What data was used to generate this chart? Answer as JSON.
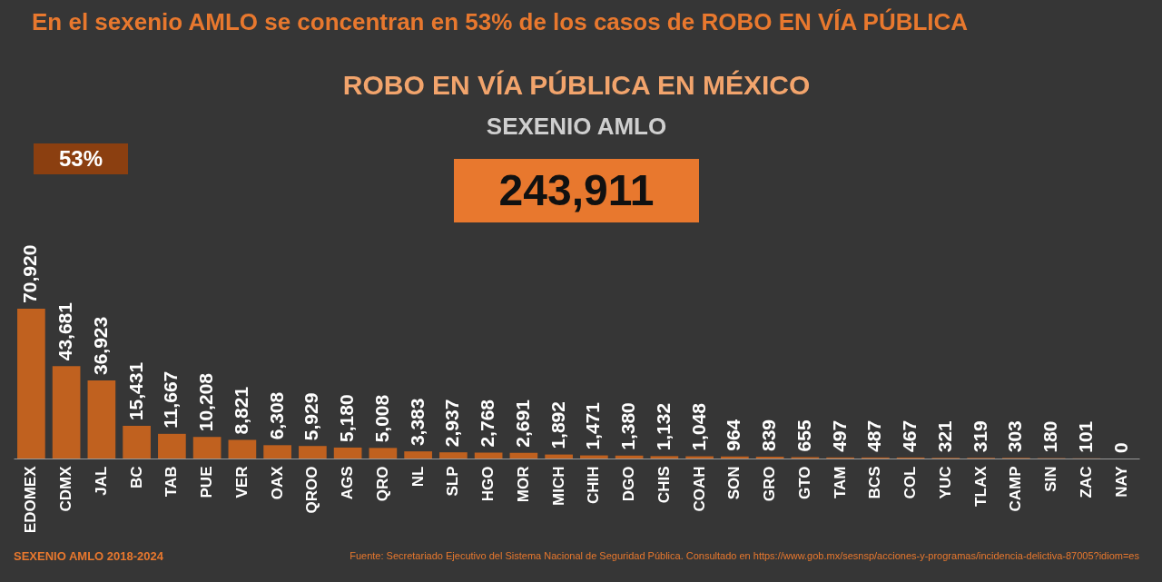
{
  "chart_data": {
    "type": "bar",
    "title": "ROBO EN VÍA PÚBLICA EN MÉXICO",
    "subtitle": "SEXENIO AMLO",
    "categories": [
      "EDOMEX",
      "CDMX",
      "JAL",
      "BC",
      "TAB",
      "PUE",
      "VER",
      "OAX",
      "QROO",
      "AGS",
      "QRO",
      "NL",
      "SLP",
      "HGO",
      "MOR",
      "MICH",
      "CHIH",
      "DGO",
      "CHIS",
      "COAH",
      "SON",
      "GRO",
      "GTO",
      "TAM",
      "BCS",
      "COL",
      "YUC",
      "TLAX",
      "CAMP",
      "SIN",
      "ZAC",
      "NAY"
    ],
    "values": [
      70920,
      43681,
      36923,
      15431,
      11667,
      10208,
      8821,
      6308,
      5929,
      5180,
      5008,
      3383,
      2937,
      2768,
      2691,
      1892,
      1471,
      1380,
      1132,
      1048,
      964,
      839,
      655,
      497,
      487,
      467,
      321,
      319,
      303,
      180,
      101,
      0
    ],
    "color": "#c0611f",
    "value_labels": [
      "70,920",
      "43,681",
      "36,923",
      "15,431",
      "11,667",
      "10,208",
      "8,821",
      "6,308",
      "5,929",
      "5,180",
      "5,008",
      "3,383",
      "2,937",
      "2,768",
      "2,691",
      "1,892",
      "1,471",
      "1,380",
      "1,132",
      "1,048",
      "964",
      "839",
      "655",
      "497",
      "487",
      "467",
      "321",
      "319",
      "303",
      "180",
      "101",
      "0"
    ],
    "annotations": [
      "En el sexenio AMLO se concentran en 53% de los casos de ROBO EN VÍA PÚBLICA",
      "243,911",
      "53%",
      "SEXENIO AMLO 2018-2024",
      "Fuente: Secretariado Ejecutivo del Sistema Nacional de Seguridad Pública. Consultado en https://www.gob.mx/sesnsp/acciones-y-programas/incidencia-delictiva-87005?idiom=es"
    ]
  }
}
